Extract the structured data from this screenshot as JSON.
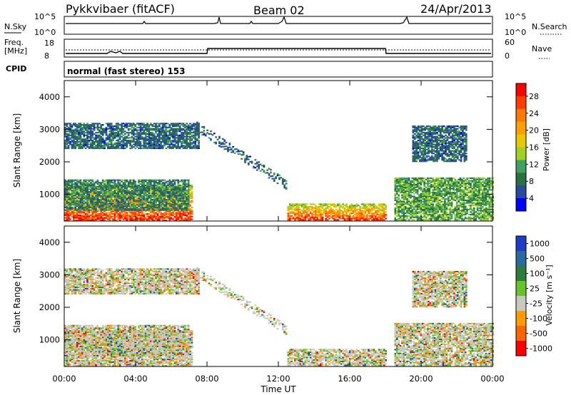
{
  "header": {
    "station": "Pykkvibaer (fitACF)",
    "beam": "Beam 02",
    "date": "24/Apr/2013"
  },
  "noise_panel": {
    "left_label": "N.Sky",
    "right_label": "N.Search",
    "y_max_label": "10^5",
    "y_min_label": "10^0",
    "y_max_label_right": "10^5",
    "y_min_label_right": "10^0"
  },
  "freq_panel": {
    "left_label": "Freq.",
    "left_unit": "[MHz]",
    "y_top": "18",
    "y_bottom": "8",
    "right_label": "Nave",
    "right_top": "60",
    "right_bottom": "0"
  },
  "cpid": {
    "label": "CPID",
    "text": "normal (fast stereo) 153"
  },
  "range_axis": {
    "label": "Slant Range [km]",
    "ticks": [
      "4000",
      "3000",
      "2000",
      "1000"
    ]
  },
  "time_axis": {
    "label": "Time UT",
    "ticks": [
      "00:00",
      "04:00",
      "08:00",
      "12:00",
      "16:00",
      "20:00",
      "00:00"
    ]
  },
  "power_colorbar": {
    "title": "Power [dB]",
    "ticks": [
      "28",
      "24",
      "20",
      "16",
      "12",
      "8",
      "4"
    ],
    "colors": [
      "#ff0000",
      "#ff3c00",
      "#ff7800",
      "#ffa000",
      "#e8c800",
      "#a0d020",
      "#40a060",
      "#2a7040",
      "#2a4aa0",
      "#0000ff"
    ]
  },
  "velocity_colorbar": {
    "title": "Velocity [m s⁻¹]",
    "ticks": [
      "1000",
      "500",
      "100",
      "25",
      "-25",
      "-100",
      "-500",
      "-1000"
    ],
    "colors": [
      "#1e3cc8",
      "#2a6aa0",
      "#2e7c3a",
      "#66c42a",
      "#c8c8c0",
      "#ff9a00",
      "#ff6400",
      "#ff0000"
    ]
  },
  "chart_data": [
    {
      "type": "heatmap",
      "title": "Power",
      "xlabel": "Time UT",
      "ylabel": "Slant Range [km]",
      "x_range_hours": [
        0,
        24
      ],
      "ylim": [
        180,
        4500
      ],
      "colorbar_label": "Power [dB]",
      "colorbar_ticks": [
        4,
        8,
        12,
        16,
        20,
        24,
        28
      ],
      "features": [
        {
          "name": "near-range band",
          "start_h": 0.0,
          "end_h": 7.2,
          "range_km": [
            180,
            1300
          ],
          "typical_power_db": 28
        },
        {
          "name": "mid-range band",
          "start_h": 0.0,
          "end_h": 7.0,
          "range_km": [
            500,
            1450
          ],
          "typical_power_db": 10
        },
        {
          "name": "far-range patches",
          "start_h": 0.0,
          "end_h": 7.5,
          "range_km": [
            2400,
            3200
          ],
          "typical_power_db": 8
        },
        {
          "name": "diagonal feature",
          "start_h": 7.3,
          "end_h": 12.4,
          "range_km": [
            1300,
            3100
          ],
          "typical_power_db": 8
        },
        {
          "name": "afternoon near-range echo",
          "start_h": 12.5,
          "end_h": 18.0,
          "range_km": [
            200,
            700
          ],
          "typical_power_db": 28
        },
        {
          "name": "evening band",
          "start_h": 18.5,
          "end_h": 24.0,
          "range_km": [
            200,
            1500
          ],
          "typical_power_db": 12
        },
        {
          "name": "evening far range",
          "start_h": 19.5,
          "end_h": 22.5,
          "range_km": [
            2000,
            3100
          ],
          "typical_power_db": 8
        }
      ]
    },
    {
      "type": "heatmap",
      "title": "Velocity",
      "xlabel": "Time UT",
      "ylabel": "Slant Range [km]",
      "x_range_hours": [
        0,
        24
      ],
      "ylim": [
        180,
        4500
      ],
      "colorbar_label": "Velocity [m s⁻¹]",
      "colorbar_ticks": [
        1000,
        500,
        100,
        25,
        -25,
        -100,
        -500,
        -1000
      ]
    }
  ]
}
